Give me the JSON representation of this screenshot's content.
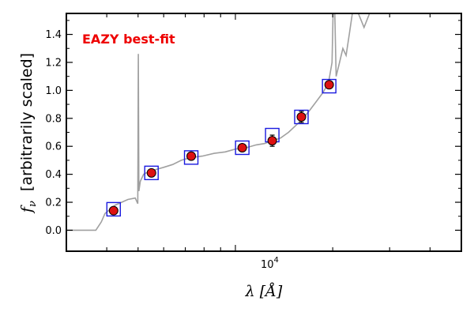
{
  "chart_data": {
    "type": "scatter",
    "annotation": "EAZY best-fit",
    "xlabel_symbol": "λ",
    "xlabel_unit": "[Å]",
    "ylabel_symbol": "f",
    "ylabel_subscript": "ν",
    "ylabel_text": "[arbitrarily scaled]",
    "x_scale": "log",
    "xlim": [
      3000,
      50000
    ],
    "ylim": [
      -0.15,
      1.55
    ],
    "x_tick_label_base": "10",
    "x_tick_label_exp": "4",
    "y_ticks": [
      0.0,
      0.2,
      0.4,
      0.6,
      0.8,
      1.0,
      1.2,
      1.4
    ],
    "y_tick_labels": [
      "0.0",
      "0.2",
      "0.4",
      "0.6",
      "0.8",
      "1.0",
      "1.2",
      "1.4"
    ],
    "colors": {
      "sed_line": "#a0a0a0",
      "observed": "#dd1111",
      "model": "#1a1adf",
      "annotation": "#ee0000"
    },
    "observed_points": [
      {
        "x": 4200,
        "y": 0.14,
        "err": 0.01
      },
      {
        "x": 5500,
        "y": 0.41,
        "err": 0.01
      },
      {
        "x": 7300,
        "y": 0.53,
        "err": 0.01
      },
      {
        "x": 10500,
        "y": 0.59,
        "err": 0.01
      },
      {
        "x": 13000,
        "y": 0.64,
        "err": 0.04
      },
      {
        "x": 16000,
        "y": 0.81,
        "err": 0.04
      },
      {
        "x": 19500,
        "y": 1.04,
        "err": 0.01
      }
    ],
    "model_points": [
      {
        "x": 4200,
        "y": 0.15
      },
      {
        "x": 5500,
        "y": 0.41
      },
      {
        "x": 7300,
        "y": 0.52
      },
      {
        "x": 10500,
        "y": 0.59
      },
      {
        "x": 13000,
        "y": 0.68
      },
      {
        "x": 16000,
        "y": 0.81
      },
      {
        "x": 19500,
        "y": 1.03
      }
    ],
    "sed_curve": [
      [
        3000,
        0.0
      ],
      [
        3700,
        0.0
      ],
      [
        3850,
        0.06
      ],
      [
        3950,
        0.12
      ],
      [
        4100,
        0.15
      ],
      [
        4250,
        0.18
      ],
      [
        4450,
        0.2
      ],
      [
        4650,
        0.22
      ],
      [
        4900,
        0.23
      ],
      [
        4990,
        0.19
      ],
      [
        5010,
        1.26
      ],
      [
        5030,
        0.28
      ],
      [
        5080,
        0.35
      ],
      [
        5200,
        0.4
      ],
      [
        5400,
        0.42
      ],
      [
        5600,
        0.43
      ],
      [
        5800,
        0.44
      ],
      [
        6000,
        0.45
      ],
      [
        6400,
        0.47
      ],
      [
        6800,
        0.5
      ],
      [
        7300,
        0.52
      ],
      [
        7900,
        0.53
      ],
      [
        8600,
        0.55
      ],
      [
        9300,
        0.56
      ],
      [
        10000,
        0.58
      ],
      [
        10800,
        0.59
      ],
      [
        11600,
        0.61
      ],
      [
        12300,
        0.62
      ],
      [
        13000,
        0.64
      ],
      [
        13800,
        0.66
      ],
      [
        14600,
        0.7
      ],
      [
        15400,
        0.75
      ],
      [
        16200,
        0.8
      ],
      [
        17000,
        0.86
      ],
      [
        17800,
        0.92
      ],
      [
        18600,
        0.98
      ],
      [
        19400,
        1.05
      ],
      [
        19900,
        1.2
      ],
      [
        20050,
        1.55
      ],
      [
        20300,
        1.55
      ],
      [
        20500,
        1.1
      ],
      [
        21000,
        1.2
      ],
      [
        21500,
        1.3
      ],
      [
        22000,
        1.25
      ],
      [
        22500,
        1.4
      ],
      [
        23000,
        1.55
      ],
      [
        24000,
        1.55
      ],
      [
        25000,
        1.45
      ],
      [
        26000,
        1.55
      ],
      [
        30000,
        1.55
      ],
      [
        50000,
        1.55
      ]
    ]
  }
}
